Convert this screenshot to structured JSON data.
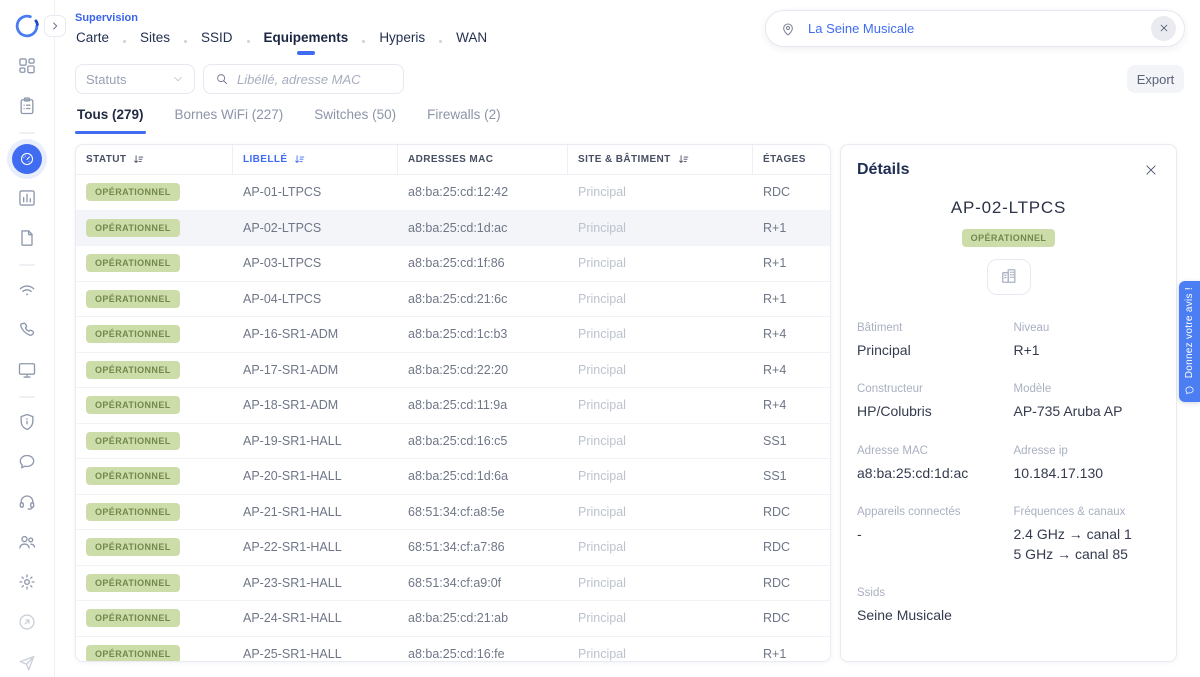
{
  "breadcrumb": {
    "section": "Supervision"
  },
  "nav": {
    "items": [
      {
        "label": "Carte",
        "active": false
      },
      {
        "label": "Sites",
        "active": false
      },
      {
        "label": "SSID",
        "active": false
      },
      {
        "label": "Equipements",
        "active": true
      },
      {
        "label": "Hyperis",
        "active": false
      },
      {
        "label": "WAN",
        "active": false
      }
    ]
  },
  "location_search": {
    "icon": "map-pin-icon",
    "value": "La Seine Musicale",
    "clear_icon": "close-icon"
  },
  "filters": {
    "status_placeholder": "Statuts",
    "search_placeholder": "Libéllé, adresse MAC",
    "export_label": "Export"
  },
  "tabs": [
    {
      "label": "Tous (279)",
      "active": true
    },
    {
      "label": "Bornes WiFi (227)",
      "active": false
    },
    {
      "label": "Switches (50)",
      "active": false
    },
    {
      "label": "Firewalls (2)",
      "active": false
    }
  ],
  "table": {
    "columns": [
      {
        "label": "STATUT",
        "sortable": true,
        "sorted": false
      },
      {
        "label": "LIBELLÉ",
        "sortable": true,
        "sorted": true
      },
      {
        "label": "ADRESSES MAC",
        "sortable": false,
        "sorted": false
      },
      {
        "label": "SITE & BÂTIMENT",
        "sortable": true,
        "sorted": false
      },
      {
        "label": "ÉTAGES",
        "sortable": false,
        "sorted": false
      }
    ],
    "selected_index": 1,
    "rows": [
      {
        "status": "OPÉRATIONNEL",
        "label": "AP-01-LTPCS",
        "mac": "a8:ba:25:cd:12:42",
        "site": "Principal",
        "floor": "RDC"
      },
      {
        "status": "OPÉRATIONNEL",
        "label": "AP-02-LTPCS",
        "mac": "a8:ba:25:cd:1d:ac",
        "site": "Principal",
        "floor": "R+1"
      },
      {
        "status": "OPÉRATIONNEL",
        "label": "AP-03-LTPCS",
        "mac": "a8:ba:25:cd:1f:86",
        "site": "Principal",
        "floor": "R+1"
      },
      {
        "status": "OPÉRATIONNEL",
        "label": "AP-04-LTPCS",
        "mac": "a8:ba:25:cd:21:6c",
        "site": "Principal",
        "floor": "R+1"
      },
      {
        "status": "OPÉRATIONNEL",
        "label": "AP-16-SR1-ADM",
        "mac": "a8:ba:25:cd:1c:b3",
        "site": "Principal",
        "floor": "R+4"
      },
      {
        "status": "OPÉRATIONNEL",
        "label": "AP-17-SR1-ADM",
        "mac": "a8:ba:25:cd:22:20",
        "site": "Principal",
        "floor": "R+4"
      },
      {
        "status": "OPÉRATIONNEL",
        "label": "AP-18-SR1-ADM",
        "mac": "a8:ba:25:cd:11:9a",
        "site": "Principal",
        "floor": "R+4"
      },
      {
        "status": "OPÉRATIONNEL",
        "label": "AP-19-SR1-HALL",
        "mac": "a8:ba:25:cd:16:c5",
        "site": "Principal",
        "floor": "SS1"
      },
      {
        "status": "OPÉRATIONNEL",
        "label": "AP-20-SR1-HALL",
        "mac": "a8:ba:25:cd:1d:6a",
        "site": "Principal",
        "floor": "SS1"
      },
      {
        "status": "OPÉRATIONNEL",
        "label": "AP-21-SR1-HALL",
        "mac": "68:51:34:cf:a8:5e",
        "site": "Principal",
        "floor": "RDC"
      },
      {
        "status": "OPÉRATIONNEL",
        "label": "AP-22-SR1-HALL",
        "mac": "68:51:34:cf:a7:86",
        "site": "Principal",
        "floor": "RDC"
      },
      {
        "status": "OPÉRATIONNEL",
        "label": "AP-23-SR1-HALL",
        "mac": "68:51:34:cf:a9:0f",
        "site": "Principal",
        "floor": "RDC"
      },
      {
        "status": "OPÉRATIONNEL",
        "label": "AP-24-SR1-HALL",
        "mac": "a8:ba:25:cd:21:ab",
        "site": "Principal",
        "floor": "RDC"
      },
      {
        "status": "OPÉRATIONNEL",
        "label": "AP-25-SR1-HALL",
        "mac": "a8:ba:25:cd:16:fe",
        "site": "Principal",
        "floor": "R+1"
      }
    ]
  },
  "details": {
    "title": "Détails",
    "device_name": "AP-02-LTPCS",
    "device_status": "OPÉRATIONNEL",
    "building_icon": "buildings-icon",
    "fields": [
      {
        "label": "Bâtiment",
        "value": "Principal"
      },
      {
        "label": "Niveau",
        "value": "R+1"
      },
      {
        "label": "Constructeur",
        "value": "HP/Colubris"
      },
      {
        "label": "Modèle",
        "value": "AP-735 Aruba AP"
      },
      {
        "label": "Adresse MAC",
        "value": "a8:ba:25:cd:1d:ac"
      },
      {
        "label": "Adresse ip",
        "value": "10.184.17.130"
      },
      {
        "label": "Appareils connectés",
        "value": "-"
      },
      {
        "label": "Fréquences & canaux",
        "value": "2.4 GHz → canal 1\n5 GHz → canal 85"
      },
      {
        "label": "Ssids",
        "value": "Seine Musicale"
      }
    ]
  },
  "feedback": {
    "label": "Donnez votre avis !",
    "icon": "chat-bubble-icon"
  },
  "sidebar": {
    "icons": [
      {
        "icon": "dashboard-icon"
      },
      {
        "icon": "clipboard-icon"
      },
      {
        "divider": true
      },
      {
        "icon": "gauge-icon",
        "active": true
      },
      {
        "icon": "bar-chart-icon"
      },
      {
        "icon": "document-icon"
      },
      {
        "divider": true
      },
      {
        "icon": "wifi-icon"
      },
      {
        "icon": "phone-icon"
      },
      {
        "icon": "monitor-icon"
      },
      {
        "divider": true
      },
      {
        "icon": "shield-icon"
      },
      {
        "icon": "chat-bubble-icon"
      },
      {
        "icon": "headset-icon"
      },
      {
        "icon": "users-icon"
      },
      {
        "icon": "settings-icon"
      },
      {
        "icon": "external-link-icon",
        "muted": true
      },
      {
        "icon": "paper-plane-icon",
        "muted": true
      }
    ]
  },
  "colors": {
    "accent": "#3f6cf0",
    "badge_bg": "#ccdda9",
    "badge_text": "#72884d",
    "feedback_bg": "#4b7ef2",
    "selected_row_bg": "#f4f5f9"
  }
}
